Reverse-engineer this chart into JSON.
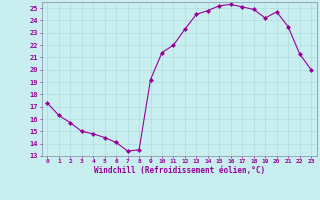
{
  "x": [
    0,
    1,
    2,
    3,
    4,
    5,
    6,
    7,
    8,
    9,
    10,
    11,
    12,
    13,
    14,
    15,
    16,
    17,
    18,
    19,
    20,
    21,
    22,
    23
  ],
  "y": [
    17.3,
    16.3,
    15.7,
    15.0,
    14.8,
    14.5,
    14.1,
    13.4,
    13.5,
    19.2,
    21.4,
    22.0,
    23.3,
    24.5,
    24.8,
    25.2,
    25.3,
    25.1,
    24.9,
    24.2,
    24.7,
    23.5,
    21.3,
    20.0
  ],
  "line_color": "#990099",
  "marker": "D",
  "marker_size": 2.0,
  "bg_color": "#c8eef0",
  "grid_color": "#aadddd",
  "xlabel": "Windchill (Refroidissement éolien,°C)",
  "xlabel_color": "#990099",
  "tick_color": "#990099",
  "ylim": [
    13,
    25.5
  ],
  "yticks": [
    13,
    14,
    15,
    16,
    17,
    18,
    19,
    20,
    21,
    22,
    23,
    24,
    25
  ],
  "xticks": [
    0,
    1,
    2,
    3,
    4,
    5,
    6,
    7,
    8,
    9,
    10,
    11,
    12,
    13,
    14,
    15,
    16,
    17,
    18,
    19,
    20,
    21,
    22,
    23
  ],
  "xlim": [
    -0.5,
    23.5
  ]
}
